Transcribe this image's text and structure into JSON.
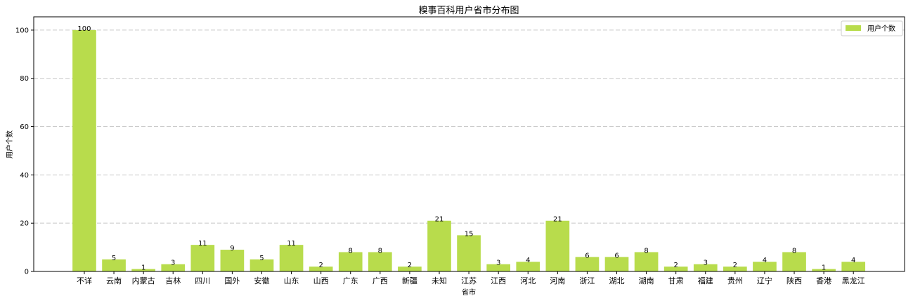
{
  "chart_data": {
    "type": "bar",
    "title": "糗事百科用户省市分布图",
    "xlabel": "省市",
    "ylabel": "用户个数",
    "categories": [
      "不详",
      "云南",
      "内蒙古",
      "吉林",
      "四川",
      "国外",
      "安徽",
      "山东",
      "山西",
      "广东",
      "广西",
      "新疆",
      "未知",
      "江苏",
      "江西",
      "河北",
      "河南",
      "浙江",
      "湖北",
      "湖南",
      "甘肃",
      "福建",
      "贵州",
      "辽宁",
      "陕西",
      "香港",
      "黑龙江"
    ],
    "series": [
      {
        "name": "用户个数",
        "values": [
          100,
          5,
          1,
          3,
          11,
          9,
          5,
          11,
          2,
          8,
          8,
          2,
          21,
          15,
          3,
          4,
          21,
          6,
          6,
          8,
          2,
          3,
          2,
          4,
          8,
          1,
          4
        ]
      }
    ],
    "ylim": [
      0,
      105.5
    ],
    "yticks": [
      0,
      20,
      40,
      60,
      80,
      100
    ],
    "grid": "y-dashed",
    "legend": "top-right",
    "bar_color": "#b8dc4c",
    "data_labels": true
  }
}
